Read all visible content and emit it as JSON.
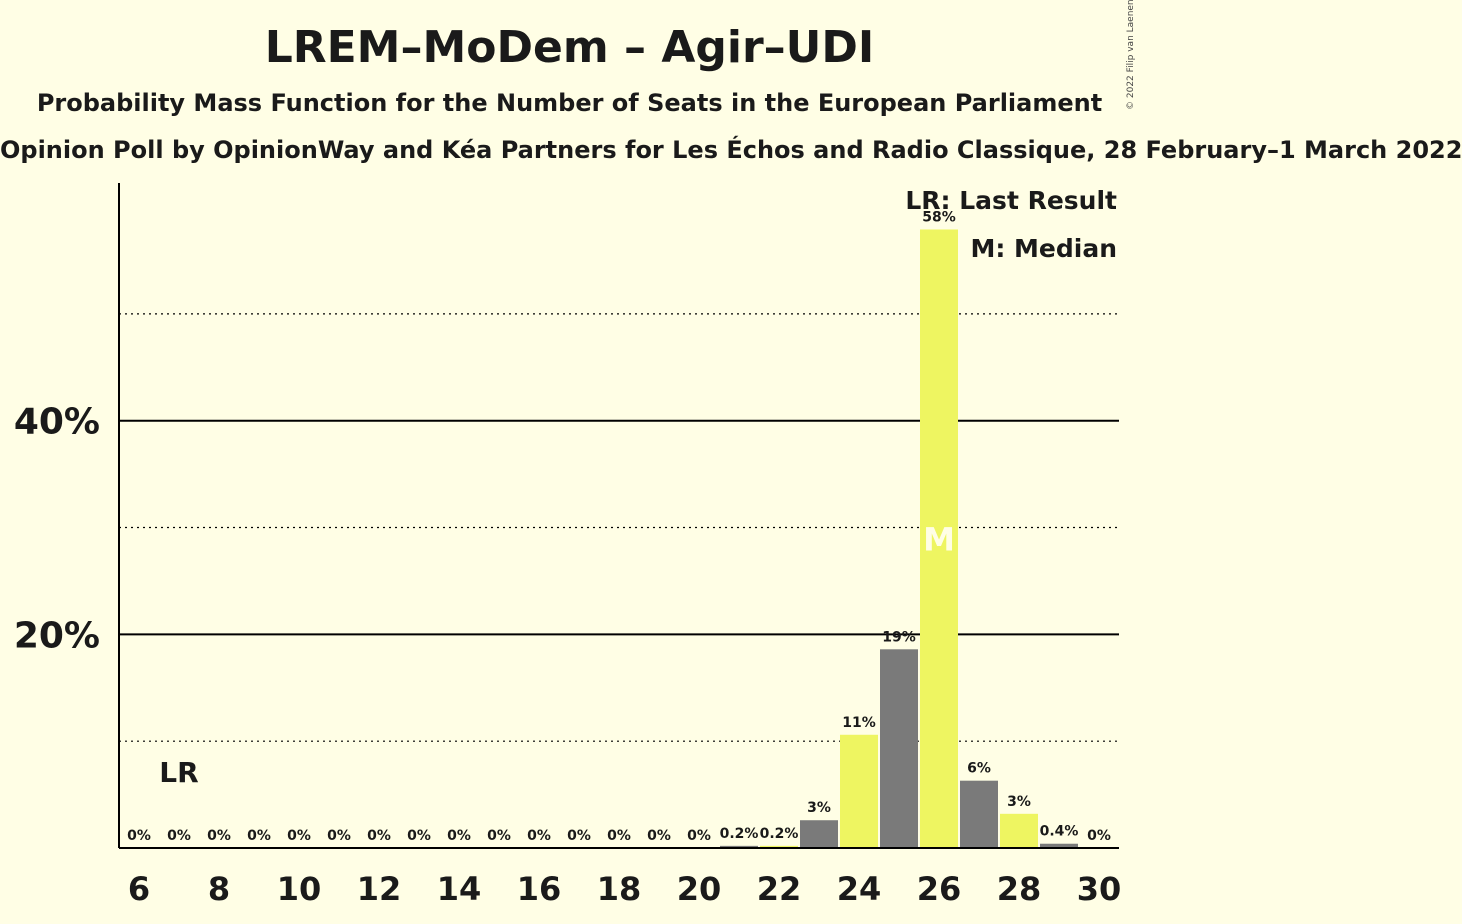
{
  "title": "LREM–MoDem – Agir–UDI",
  "subtitle": "Probability Mass Function for the Number of Seats in the European Parliament",
  "subtitle2": "Opinion Poll by OpinionWay and Kéa Partners for Les Échos and Radio Classique, 28 February–1 March 2022",
  "copyright": "© 2022 Filip van Laenen",
  "legend": {
    "last_result": "LR: Last Result",
    "median": "M: Median"
  },
  "colors": {
    "background": "#FFFEE5",
    "bar_dark": "#7A7A7A",
    "bar_light": "#EEF561"
  },
  "chart_data": {
    "type": "bar",
    "x": [
      6,
      7,
      8,
      9,
      10,
      11,
      12,
      13,
      14,
      15,
      16,
      17,
      18,
      19,
      20,
      21,
      22,
      23,
      24,
      25,
      26,
      27,
      28,
      29,
      30
    ],
    "values": [
      0,
      0,
      0,
      0,
      0,
      0,
      0,
      0,
      0,
      0,
      0,
      0,
      0,
      0,
      0,
      0.2,
      0.2,
      2.6,
      10.6,
      18.6,
      57.9,
      6.3,
      3.2,
      0.4,
      0
    ],
    "value_labels": [
      "0%",
      "0%",
      "0%",
      "0%",
      "0%",
      "0%",
      "0%",
      "0%",
      "0%",
      "0%",
      "0%",
      "0%",
      "0%",
      "0%",
      "0%",
      "0.2%",
      "0.2%",
      "3%",
      "11%",
      "19%",
      "58%",
      "6%",
      "3%",
      "0.4%",
      "0%"
    ],
    "x_ticks": [
      "6",
      "8",
      "10",
      "12",
      "14",
      "16",
      "18",
      "20",
      "22",
      "24",
      "26",
      "28",
      "30"
    ],
    "y_ticks": [
      "20%",
      "40%"
    ],
    "ylim": [
      0,
      63
    ],
    "major_grid": [
      20,
      40
    ],
    "minor_grid": [
      10,
      30,
      50
    ],
    "last_result": {
      "x": 7,
      "label": "LR"
    },
    "median": {
      "x": 26,
      "label": "M"
    }
  }
}
